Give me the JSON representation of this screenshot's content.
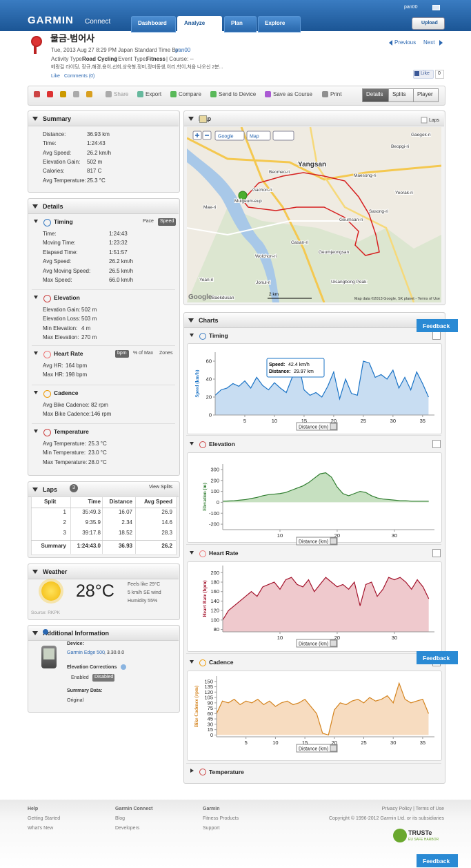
{
  "header": {
    "logo": "GARMIN",
    "logo_sub": "Connect",
    "nav": [
      "Dashboard",
      "Analyze",
      "Plan",
      "Explore"
    ],
    "user": "pan00",
    "upload": "Upload"
  },
  "activity": {
    "title": "물금-범어사",
    "date": "Tue, 2013 Aug 27 8:29 PM Japan Standard Time By",
    "owner": "pan00",
    "activity_type_label": "Activity Type:",
    "activity_type": "Road Cycling",
    "event_type_label": "| Event Type:",
    "event_type": "Fitness",
    "course": "| Course: --",
    "description": "베랑길 라이딩, 장규,해경,용이,선희,상욱형,정미,정미동생,이리,학이,처음 나오신 2분...",
    "like_link": "Like",
    "comments": "Comments (0)",
    "previous": "Previous",
    "next": "Next",
    "fb_like": "Like",
    "fb_count": "0"
  },
  "toolbar": {
    "actions": [
      "Share",
      "Export",
      "Compare",
      "Send to Device",
      "Save as Course",
      "Print"
    ],
    "views": [
      "Details",
      "Splits",
      "Player"
    ]
  },
  "summary": {
    "title": "Summary",
    "rows": [
      [
        "Distance:",
        "36.93 km"
      ],
      [
        "Time:",
        "1:24:43"
      ],
      [
        "Avg Speed:",
        "26.2 km/h"
      ],
      [
        "Elevation Gain:",
        "502 m"
      ],
      [
        "Calories:",
        "817 C"
      ],
      [
        "Avg Temperature:",
        "25.3 °C"
      ]
    ]
  },
  "details": {
    "title": "Details",
    "sections": [
      {
        "title": "Timing",
        "options": [
          "Pace",
          "Speed"
        ],
        "rows": [
          [
            "Time:",
            "1:24:43"
          ],
          [
            "Moving Time:",
            "1:23:32"
          ],
          [
            "Elapsed Time:",
            "1:51:57"
          ],
          [
            "Avg Speed:",
            "26.2 km/h"
          ],
          [
            "Avg Moving Speed:",
            "26.5 km/h"
          ],
          [
            "Max Speed:",
            "66.0 km/h"
          ]
        ]
      },
      {
        "title": "Elevation",
        "rows": [
          [
            "Elevation Gain:",
            "502 m"
          ],
          [
            "Elevation Loss:",
            "503 m"
          ],
          [
            "Min Elevation:",
            "4 m"
          ],
          [
            "Max Elevation:",
            "270 m"
          ]
        ]
      },
      {
        "title": "Heart Rate",
        "options": [
          "bpm",
          "% of Max",
          "Zones"
        ],
        "rows": [
          [
            "Avg HR:",
            "164 bpm"
          ],
          [
            "Max HR:",
            "198 bpm"
          ]
        ]
      },
      {
        "title": "Cadence",
        "rows": [
          [
            "Avg Bike Cadence:",
            "82 rpm"
          ],
          [
            "Max Bike Cadence:",
            "146 rpm"
          ]
        ]
      },
      {
        "title": "Temperature",
        "rows": [
          [
            "Avg Temperature:",
            "25.3 °C"
          ],
          [
            "Min Temperature:",
            "23.0 °C"
          ],
          [
            "Max Temperature:",
            "28.0 °C"
          ]
        ]
      }
    ]
  },
  "laps": {
    "title": "Laps",
    "count": "3",
    "link": "View Splits",
    "columns": [
      "Split",
      "Time",
      "Distance",
      "Avg Speed"
    ],
    "rows": [
      [
        "1",
        "35:49.3",
        "16.07",
        "26.9"
      ],
      [
        "2",
        "9:35.9",
        "2.34",
        "14.6"
      ],
      [
        "3",
        "39:17.8",
        "18.52",
        "28.3"
      ]
    ],
    "summary": [
      "Summary",
      "1:24:43.0",
      "36.93",
      "26.2"
    ]
  },
  "weather": {
    "title": "Weather",
    "temp": "28°C",
    "details": [
      "Feels like 29°C",
      "5 km/h SE wind",
      "Humidity 55%"
    ],
    "source": "Source: RKPK"
  },
  "additional": {
    "title": "Additional Information",
    "device_label": "Device:",
    "device": "Garmin Edge 500",
    "device_version": ", 3.30.0.0",
    "elev_label": "Elevation Corrections",
    "elev_options": [
      "Enabled",
      "Disabled"
    ],
    "summary_label": "Summary Data:",
    "summary_value": "Original"
  },
  "map": {
    "title": "Map",
    "laps": "Laps",
    "controls": [
      "Google",
      "Map"
    ],
    "labels": [
      "Yangsan",
      "Beomeo-ri",
      "Gachon-ri",
      "Mulgeum-eup",
      "Mae-ri",
      "Geumsan-ri",
      "Gasan-ri",
      "Sasong-ri",
      "Yeorak-ri",
      "Beopgi-ri",
      "Gaegok-ri",
      "Maesong-ri",
      "Wolchon-ri",
      "Geumjeongsan",
      "Uisangbong Peak",
      "Yean-ri",
      "Jonul-ri",
      "Baekdusan"
    ],
    "scale": "2 km",
    "brand": "Google",
    "attribution": "Map data ©2013 Google, SK planet - Terms of Use"
  },
  "charts_panel": {
    "title": "Charts",
    "collapsed": "Temperature",
    "charts": [
      {
        "type": "line",
        "title": "Timing",
        "y_label": "Speed (km/h)",
        "x_label": "Distance (km)",
        "color": "#1a73c6",
        "fill": "#c8ddf2",
        "x": [
          0,
          1,
          2,
          3,
          4,
          5,
          6,
          7,
          8,
          9,
          10,
          11,
          12,
          13,
          14,
          15,
          16,
          17,
          18,
          19,
          20,
          21,
          22,
          23,
          24,
          25,
          26,
          27,
          28,
          29,
          30,
          31,
          32,
          33,
          34,
          35,
          36
        ],
        "values": [
          22,
          28,
          30,
          35,
          32,
          38,
          30,
          42,
          33,
          28,
          36,
          30,
          25,
          42,
          60,
          28,
          22,
          25,
          20,
          32,
          48,
          18,
          40,
          24,
          22,
          60,
          58,
          42,
          45,
          40,
          50,
          30,
          42,
          28,
          48,
          35,
          20
        ],
        "xlim": [
          0,
          37
        ],
        "ylim": [
          0,
          70
        ],
        "xticks": [
          5,
          10,
          15,
          20,
          25,
          30,
          35
        ],
        "yticks": [
          0,
          20,
          40,
          60
        ],
        "tooltip": {
          "speed_label": "Speed:",
          "speed": "42.4 km/h",
          "distance_label": "Distance:",
          "distance": "29.97 km"
        }
      },
      {
        "type": "line",
        "title": "Elevation",
        "y_label": "Elevation (m)",
        "x_label": "Distance (km)",
        "color": "#2f7d2f",
        "fill": "#c6e0c0",
        "x": [
          0,
          1,
          2,
          3,
          4,
          5,
          6,
          7,
          8,
          9,
          10,
          11,
          12,
          13,
          14,
          15,
          16,
          17,
          18,
          19,
          20,
          21,
          22,
          23,
          24,
          25,
          26,
          27,
          28,
          29,
          30,
          31,
          32,
          33,
          34,
          35,
          36
        ],
        "values": [
          10,
          12,
          15,
          20,
          25,
          35,
          45,
          60,
          70,
          75,
          80,
          90,
          110,
          130,
          150,
          180,
          220,
          260,
          270,
          230,
          140,
          80,
          60,
          80,
          100,
          90,
          60,
          40,
          30,
          25,
          20,
          15,
          15,
          10,
          10,
          10,
          10
        ],
        "xlim": [
          0,
          37
        ],
        "ylim": [
          -250,
          350
        ],
        "xticks": [
          10,
          20,
          30
        ],
        "yticks": [
          -200,
          -100,
          0,
          100,
          200,
          300
        ]
      },
      {
        "type": "line",
        "title": "Heart Rate",
        "y_label": "Heart Rate (bpm)",
        "x_label": "Distance (km)",
        "color": "#a3122b",
        "fill": "#efc9cd",
        "x": [
          0,
          1,
          2,
          3,
          4,
          5,
          6,
          7,
          8,
          9,
          10,
          11,
          12,
          13,
          14,
          15,
          16,
          17,
          18,
          19,
          20,
          21,
          22,
          23,
          24,
          25,
          26,
          27,
          28,
          29,
          30,
          31,
          32,
          33,
          34,
          35,
          36
        ],
        "values": [
          100,
          120,
          130,
          140,
          150,
          160,
          150,
          170,
          175,
          180,
          165,
          185,
          190,
          175,
          170,
          185,
          160,
          175,
          190,
          180,
          170,
          175,
          165,
          180,
          130,
          175,
          180,
          150,
          165,
          190,
          185,
          190,
          180,
          165,
          185,
          170,
          145
        ],
        "xlim": [
          0,
          37
        ],
        "ylim": [
          75,
          215
        ],
        "xticks": [
          10,
          20,
          30
        ],
        "yticks": [
          80,
          100,
          120,
          140,
          160,
          180,
          200
        ]
      },
      {
        "type": "line",
        "title": "Cadence",
        "y_label": "Bike Cadence (rpm)",
        "x_label": "Distance (km)",
        "color": "#d4831d",
        "fill": "#f7dcc0",
        "x": [
          0,
          1,
          2,
          3,
          4,
          5,
          6,
          7,
          8,
          9,
          10,
          11,
          12,
          13,
          14,
          15,
          16,
          17,
          18,
          19,
          20,
          21,
          22,
          23,
          24,
          25,
          26,
          27,
          28,
          29,
          30,
          31,
          32,
          33,
          34,
          35,
          36
        ],
        "values": [
          60,
          95,
          90,
          100,
          85,
          95,
          90,
          100,
          85,
          95,
          80,
          90,
          95,
          85,
          90,
          100,
          80,
          60,
          5,
          0,
          70,
          90,
          85,
          95,
          100,
          90,
          105,
          95,
          100,
          110,
          90,
          145,
          100,
          90,
          95,
          100,
          60
        ],
        "xlim": [
          0,
          37
        ],
        "ylim": [
          -5,
          165
        ],
        "xticks": [
          5,
          10,
          15,
          20,
          25,
          30,
          35
        ],
        "yticks": [
          0,
          15,
          30,
          45,
          60,
          75,
          90,
          105,
          120,
          135,
          150
        ]
      }
    ]
  },
  "feedback": "Feedback",
  "footer": {
    "columns": [
      {
        "title": "Help",
        "links": [
          "Getting Started",
          "What's New"
        ]
      },
      {
        "title": "Garmin Connect",
        "links": [
          "Blog",
          "Developers"
        ]
      },
      {
        "title": "Garmin",
        "links": [
          "Fitness Products",
          "Support"
        ]
      }
    ],
    "legal": [
      "Privacy Policy | Terms of Use",
      "Copyright © 1996-2012 Garmin Ltd. or its subsidiaries"
    ],
    "truste": "TRUSTe",
    "truste_sub": "EU SAFE HARBOR"
  }
}
